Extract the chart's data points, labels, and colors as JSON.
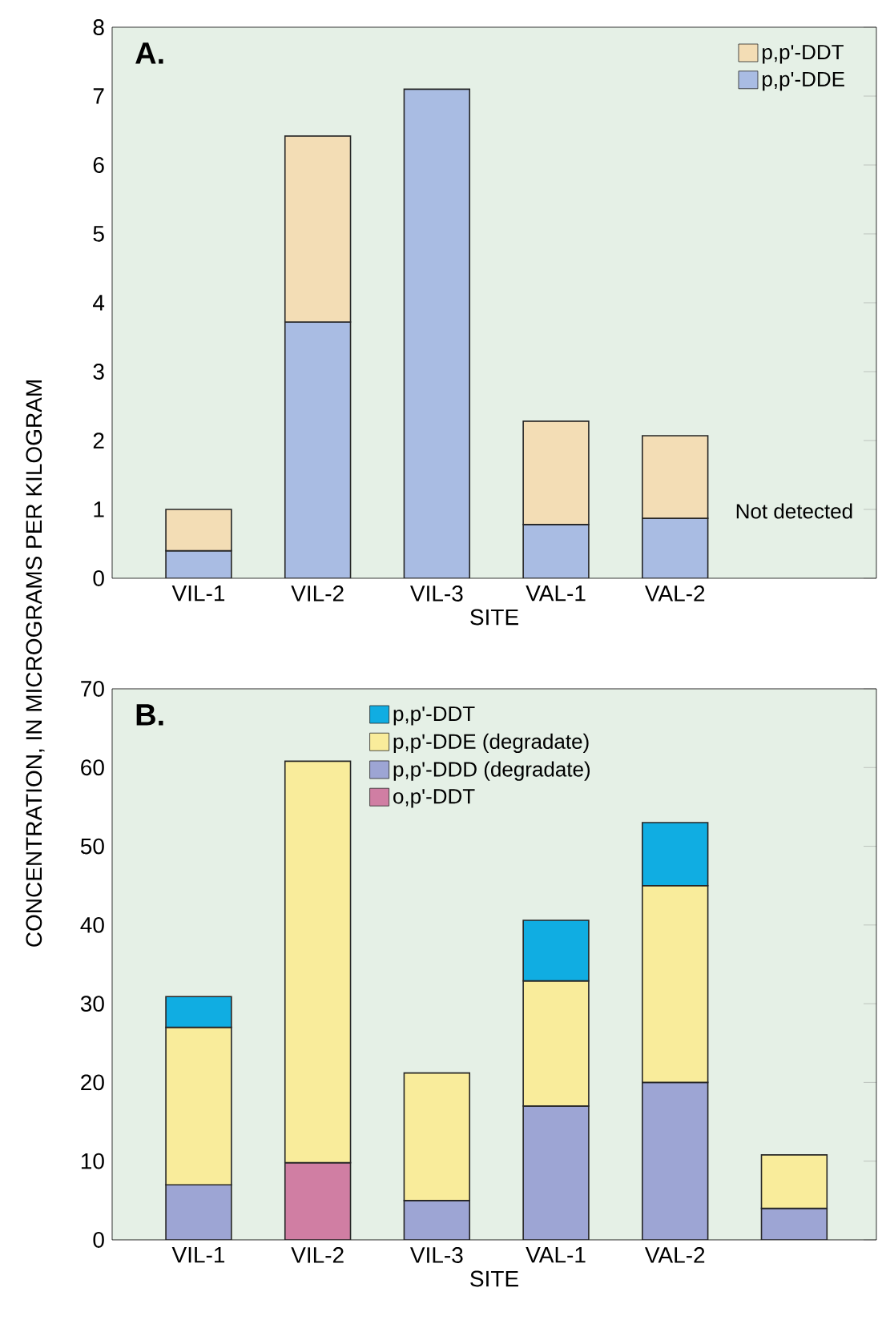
{
  "chart_data": [
    {
      "type": "bar",
      "stacked": true,
      "title": "A.",
      "xlabel": "SITE",
      "ylabel": "CONCENTRATION, IN MICROGRAMS PER KILOGRAM",
      "categories": [
        "VIL-1",
        "VIL-2",
        "VIL-3",
        "VAL-1",
        "VAL-2",
        null
      ],
      "ylim": [
        0,
        8
      ],
      "yticks": [
        0,
        1,
        2,
        3,
        4,
        5,
        6,
        7,
        8
      ],
      "legend": "top right",
      "annotations": [
        "Not detected"
      ],
      "series": [
        {
          "name": "p,p'-DDE",
          "color": "#a9bce3",
          "values": [
            0.4,
            3.72,
            7.1,
            0.78,
            0.87,
            null
          ]
        },
        {
          "name": "p,p'-DDT",
          "color": "#f3ddb5",
          "values": [
            0.6,
            2.7,
            null,
            1.5,
            1.2,
            null
          ]
        }
      ]
    },
    {
      "type": "bar",
      "stacked": true,
      "title": "B.",
      "xlabel": "SITE",
      "categories": [
        "VIL-1",
        "VIL-2",
        "VIL-3",
        "VAL-1",
        "VAL-2",
        null
      ],
      "ylim": [
        0,
        70
      ],
      "yticks": [
        0,
        10,
        20,
        30,
        40,
        50,
        60,
        70
      ],
      "legend": "top",
      "series": [
        {
          "name": "o,p'-DDT",
          "color": "#d07ea3",
          "values": [
            null,
            9.8,
            null,
            null,
            null,
            null
          ]
        },
        {
          "name": "p,p'-DDD (degradate)",
          "color": "#9da5d4",
          "values": [
            7,
            null,
            5,
            17,
            20,
            4
          ]
        },
        {
          "name": "p,p'-DDE (degradate)",
          "color": "#f9ec9b",
          "values": [
            20,
            51,
            16.2,
            15.9,
            25,
            6.8
          ]
        },
        {
          "name": "p,p'-DDT",
          "color": "#10ade2",
          "values": [
            3.9,
            null,
            null,
            7.7,
            8,
            null
          ]
        }
      ]
    }
  ]
}
